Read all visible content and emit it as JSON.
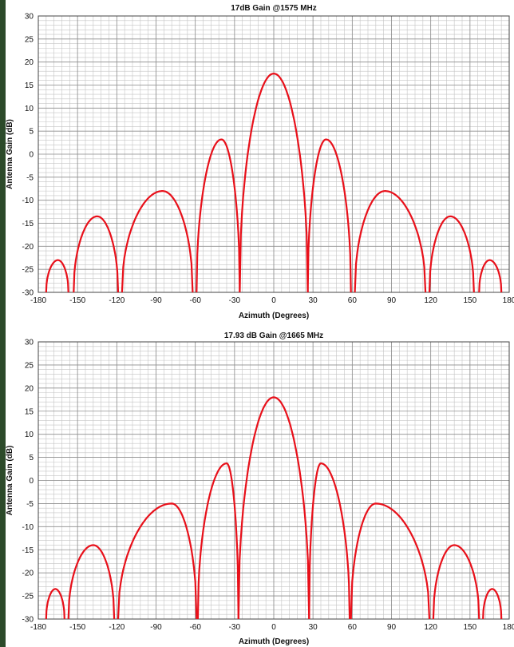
{
  "chart_data": [
    {
      "type": "line",
      "title": "17dB Gain @1575 MHz",
      "xlabel": "Azimuth (Degrees)",
      "ylabel": "Antenna Gain (dB)",
      "xlim": [
        -180,
        180
      ],
      "ylim": [
        -30,
        30
      ],
      "xticks": [
        -180,
        -150,
        -120,
        -90,
        -60,
        -30,
        0,
        30,
        60,
        90,
        120,
        150,
        180
      ],
      "yticks": [
        30,
        25,
        20,
        15,
        10,
        5,
        0,
        -5,
        -10,
        -15,
        -20,
        -25,
        -30
      ],
      "grid": true,
      "series": [
        {
          "color": "#e8101a",
          "lobes": [
            {
              "start": -174,
              "end": -157,
              "peak_x": -165,
              "peak_y": -23
            },
            {
              "start": -153,
              "end": -119,
              "peak_x": -135,
              "peak_y": -13.5
            },
            {
              "start": -116,
              "end": -62,
              "peak_x": -85,
              "peak_y": -8
            },
            {
              "start": -59,
              "end": -26,
              "peak_x": -40,
              "peak_y": 3.2
            },
            {
              "start": -26,
              "end": 26,
              "peak_x": 0,
              "peak_y": 17.5
            },
            {
              "start": 26,
              "end": 59,
              "peak_x": 40,
              "peak_y": 3.2
            },
            {
              "start": 62,
              "end": 116,
              "peak_x": 85,
              "peak_y": -8
            },
            {
              "start": 119,
              "end": 153,
              "peak_x": 135,
              "peak_y": -13.5
            },
            {
              "start": 157,
              "end": 174,
              "peak_x": 165,
              "peak_y": -23
            }
          ]
        }
      ]
    },
    {
      "type": "line",
      "title": "17.93 dB Gain @1665 MHz",
      "xlabel": "Azimuth (Degrees)",
      "ylabel": "Antenna Gain (dB)",
      "xlim": [
        -180,
        180
      ],
      "ylim": [
        -30,
        30
      ],
      "xticks": [
        -180,
        -150,
        -120,
        -90,
        -60,
        -30,
        0,
        30,
        60,
        90,
        120,
        150,
        180
      ],
      "yticks": [
        30,
        25,
        20,
        15,
        10,
        5,
        0,
        -5,
        -10,
        -15,
        -20,
        -25,
        -30
      ],
      "grid": true,
      "series": [
        {
          "color": "#e8101a",
          "lobes": [
            {
              "start": -174,
              "end": -160,
              "peak_x": -167,
              "peak_y": -23.5
            },
            {
              "start": -157,
              "end": -122,
              "peak_x": -138,
              "peak_y": -14
            },
            {
              "start": -119,
              "end": -59,
              "peak_x": -78,
              "peak_y": -5
            },
            {
              "start": -58,
              "end": -27,
              "peak_x": -36,
              "peak_y": 3.7
            },
            {
              "start": -27,
              "end": 27,
              "peak_x": 0,
              "peak_y": 18
            },
            {
              "start": 27,
              "end": 58,
              "peak_x": 36,
              "peak_y": 3.7
            },
            {
              "start": 59,
              "end": 119,
              "peak_x": 78,
              "peak_y": -5
            },
            {
              "start": 122,
              "end": 157,
              "peak_x": 138,
              "peak_y": -14
            },
            {
              "start": 160,
              "end": 174,
              "peak_x": 167,
              "peak_y": -23.5
            }
          ]
        }
      ]
    }
  ]
}
